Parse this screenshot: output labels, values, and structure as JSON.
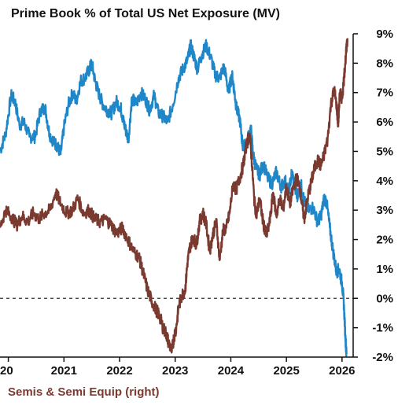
{
  "chart_data": {
    "type": "line",
    "title": "Prime Book % of Total US Net Exposure (MV)",
    "x_ticks": [
      "20",
      "2021",
      "2022",
      "2023",
      "2024",
      "2025",
      "2026"
    ],
    "y_ticks": [
      "9%",
      "8%",
      "7%",
      "6%",
      "5%",
      "4%",
      "3%",
      "2%",
      "1%",
      "0%",
      "-1%",
      "-2%"
    ],
    "ylim": [
      -2,
      9
    ],
    "xlim": [
      2019.85,
      2026.2
    ],
    "grid": false,
    "zero_line": "dashed",
    "legend_visible_entry": "Semis & Semi Equip (right)",
    "colors": {
      "blue_series": "#1f86c8",
      "brown_series": "#7a3a30",
      "axis": "#111111"
    },
    "series": [
      {
        "color_key": "blue_series",
        "points": [
          [
            2019.85,
            5.0
          ],
          [
            2019.95,
            5.6
          ],
          [
            2020.05,
            6.9
          ],
          [
            2020.12,
            6.7
          ],
          [
            2020.2,
            5.9
          ],
          [
            2020.28,
            6.0
          ],
          [
            2020.38,
            5.5
          ],
          [
            2020.48,
            5.5
          ],
          [
            2020.58,
            6.4
          ],
          [
            2020.66,
            6.5
          ],
          [
            2020.74,
            5.6
          ],
          [
            2020.82,
            5.3
          ],
          [
            2020.88,
            5.2
          ],
          [
            2020.94,
            4.9
          ],
          [
            2021.0,
            5.8
          ],
          [
            2021.08,
            6.6
          ],
          [
            2021.16,
            7.0
          ],
          [
            2021.22,
            6.7
          ],
          [
            2021.3,
            7.4
          ],
          [
            2021.38,
            7.5
          ],
          [
            2021.46,
            7.8
          ],
          [
            2021.5,
            8.0
          ],
          [
            2021.56,
            7.4
          ],
          [
            2021.62,
            7.0
          ],
          [
            2021.7,
            6.6
          ],
          [
            2021.78,
            6.4
          ],
          [
            2021.86,
            6.3
          ],
          [
            2021.94,
            6.7
          ],
          [
            2022.02,
            6.5
          ],
          [
            2022.06,
            6.1
          ],
          [
            2022.1,
            5.8
          ],
          [
            2022.16,
            5.4
          ],
          [
            2022.22,
            6.8
          ],
          [
            2022.3,
            6.6
          ],
          [
            2022.38,
            7.0
          ],
          [
            2022.46,
            6.8
          ],
          [
            2022.54,
            6.4
          ],
          [
            2022.62,
            6.9
          ],
          [
            2022.7,
            6.3
          ],
          [
            2022.78,
            6.2
          ],
          [
            2022.86,
            6.0
          ],
          [
            2022.96,
            6.6
          ],
          [
            2023.06,
            7.5
          ],
          [
            2023.14,
            7.8
          ],
          [
            2023.22,
            8.1
          ],
          [
            2023.28,
            8.6
          ],
          [
            2023.34,
            8.2
          ],
          [
            2023.4,
            7.8
          ],
          [
            2023.48,
            8.3
          ],
          [
            2023.56,
            8.6
          ],
          [
            2023.64,
            8.2
          ],
          [
            2023.72,
            7.6
          ],
          [
            2023.8,
            7.5
          ],
          [
            2023.88,
            7.9
          ],
          [
            2023.96,
            7.0
          ],
          [
            2024.02,
            7.6
          ],
          [
            2024.06,
            7.1
          ],
          [
            2024.1,
            6.5
          ],
          [
            2024.16,
            6.1
          ],
          [
            2024.22,
            5.1
          ],
          [
            2024.3,
            5.4
          ],
          [
            2024.36,
            5.8
          ],
          [
            2024.4,
            4.9
          ],
          [
            2024.46,
            4.4
          ],
          [
            2024.52,
            4.2
          ],
          [
            2024.58,
            4.6
          ],
          [
            2024.66,
            4.1
          ],
          [
            2024.74,
            3.9
          ],
          [
            2024.82,
            4.3
          ],
          [
            2024.9,
            3.8
          ],
          [
            2024.98,
            4.0
          ],
          [
            2025.04,
            3.6
          ],
          [
            2025.1,
            4.3
          ],
          [
            2025.16,
            3.7
          ],
          [
            2025.2,
            3.5
          ],
          [
            2025.26,
            3.9
          ],
          [
            2025.32,
            3.3
          ],
          [
            2025.4,
            3.0
          ],
          [
            2025.48,
            3.1
          ],
          [
            2025.56,
            2.6
          ],
          [
            2025.62,
            2.8
          ],
          [
            2025.68,
            3.4
          ],
          [
            2025.72,
            3.3
          ],
          [
            2025.78,
            2.4
          ],
          [
            2025.84,
            1.6
          ],
          [
            2025.9,
            0.9
          ],
          [
            2025.95,
            1.0
          ],
          [
            2026.0,
            0.5
          ],
          [
            2026.03,
            -0.1
          ],
          [
            2026.06,
            -1.3
          ],
          [
            2026.08,
            -1.9
          ]
        ]
      },
      {
        "color_key": "brown_series",
        "points": [
          [
            2019.85,
            2.4
          ],
          [
            2019.95,
            3.0
          ],
          [
            2020.05,
            2.8
          ],
          [
            2020.15,
            2.5
          ],
          [
            2020.25,
            2.8
          ],
          [
            2020.35,
            2.6
          ],
          [
            2020.45,
            2.9
          ],
          [
            2020.55,
            2.7
          ],
          [
            2020.65,
            2.9
          ],
          [
            2020.75,
            3.0
          ],
          [
            2020.85,
            3.6
          ],
          [
            2020.95,
            3.2
          ],
          [
            2021.05,
            2.9
          ],
          [
            2021.15,
            3.0
          ],
          [
            2021.25,
            3.4
          ],
          [
            2021.35,
            2.9
          ],
          [
            2021.45,
            3.0
          ],
          [
            2021.55,
            2.7
          ],
          [
            2021.65,
            2.6
          ],
          [
            2021.75,
            2.7
          ],
          [
            2021.85,
            2.5
          ],
          [
            2021.95,
            2.2
          ],
          [
            2022.05,
            2.4
          ],
          [
            2022.15,
            2.0
          ],
          [
            2022.25,
            1.6
          ],
          [
            2022.35,
            1.4
          ],
          [
            2022.42,
            0.9
          ],
          [
            2022.5,
            0.3
          ],
          [
            2022.58,
            -0.1
          ],
          [
            2022.66,
            -0.4
          ],
          [
            2022.72,
            -0.6
          ],
          [
            2022.78,
            -1.0
          ],
          [
            2022.84,
            -1.2
          ],
          [
            2022.88,
            -1.5
          ],
          [
            2022.94,
            -1.8
          ],
          [
            2022.98,
            -1.3
          ],
          [
            2023.02,
            -1.0
          ],
          [
            2023.06,
            -0.3
          ],
          [
            2023.12,
            0.1
          ],
          [
            2023.18,
            0.3
          ],
          [
            2023.22,
            1.2
          ],
          [
            2023.26,
            1.7
          ],
          [
            2023.32,
            2.1
          ],
          [
            2023.38,
            1.8
          ],
          [
            2023.44,
            2.6
          ],
          [
            2023.5,
            2.9
          ],
          [
            2023.56,
            2.5
          ],
          [
            2023.62,
            1.6
          ],
          [
            2023.68,
            2.2
          ],
          [
            2023.74,
            2.6
          ],
          [
            2023.8,
            1.3
          ],
          [
            2023.86,
            2.3
          ],
          [
            2023.92,
            2.4
          ],
          [
            2023.98,
            2.9
          ],
          [
            2024.04,
            3.9
          ],
          [
            2024.1,
            3.7
          ],
          [
            2024.16,
            4.1
          ],
          [
            2024.22,
            4.5
          ],
          [
            2024.28,
            5.2
          ],
          [
            2024.34,
            5.6
          ],
          [
            2024.38,
            4.6
          ],
          [
            2024.42,
            3.4
          ],
          [
            2024.46,
            2.8
          ],
          [
            2024.52,
            3.4
          ],
          [
            2024.58,
            2.6
          ],
          [
            2024.64,
            2.1
          ],
          [
            2024.7,
            2.6
          ],
          [
            2024.76,
            3.6
          ],
          [
            2024.82,
            2.8
          ],
          [
            2024.88,
            3.4
          ],
          [
            2024.94,
            3.0
          ],
          [
            2025.0,
            3.8
          ],
          [
            2025.06,
            3.2
          ],
          [
            2025.12,
            3.7
          ],
          [
            2025.18,
            4.1
          ],
          [
            2025.24,
            3.8
          ],
          [
            2025.28,
            3.2
          ],
          [
            2025.32,
            2.7
          ],
          [
            2025.38,
            3.4
          ],
          [
            2025.44,
            3.9
          ],
          [
            2025.5,
            4.4
          ],
          [
            2025.56,
            4.7
          ],
          [
            2025.62,
            4.5
          ],
          [
            2025.68,
            4.9
          ],
          [
            2025.74,
            5.4
          ],
          [
            2025.8,
            6.6
          ],
          [
            2025.86,
            7.1
          ],
          [
            2025.9,
            6.6
          ],
          [
            2025.93,
            5.9
          ],
          [
            2025.96,
            7.0
          ],
          [
            2026.0,
            6.8
          ],
          [
            2026.04,
            7.6
          ],
          [
            2026.07,
            8.3
          ],
          [
            2026.1,
            8.8
          ]
        ]
      }
    ]
  }
}
